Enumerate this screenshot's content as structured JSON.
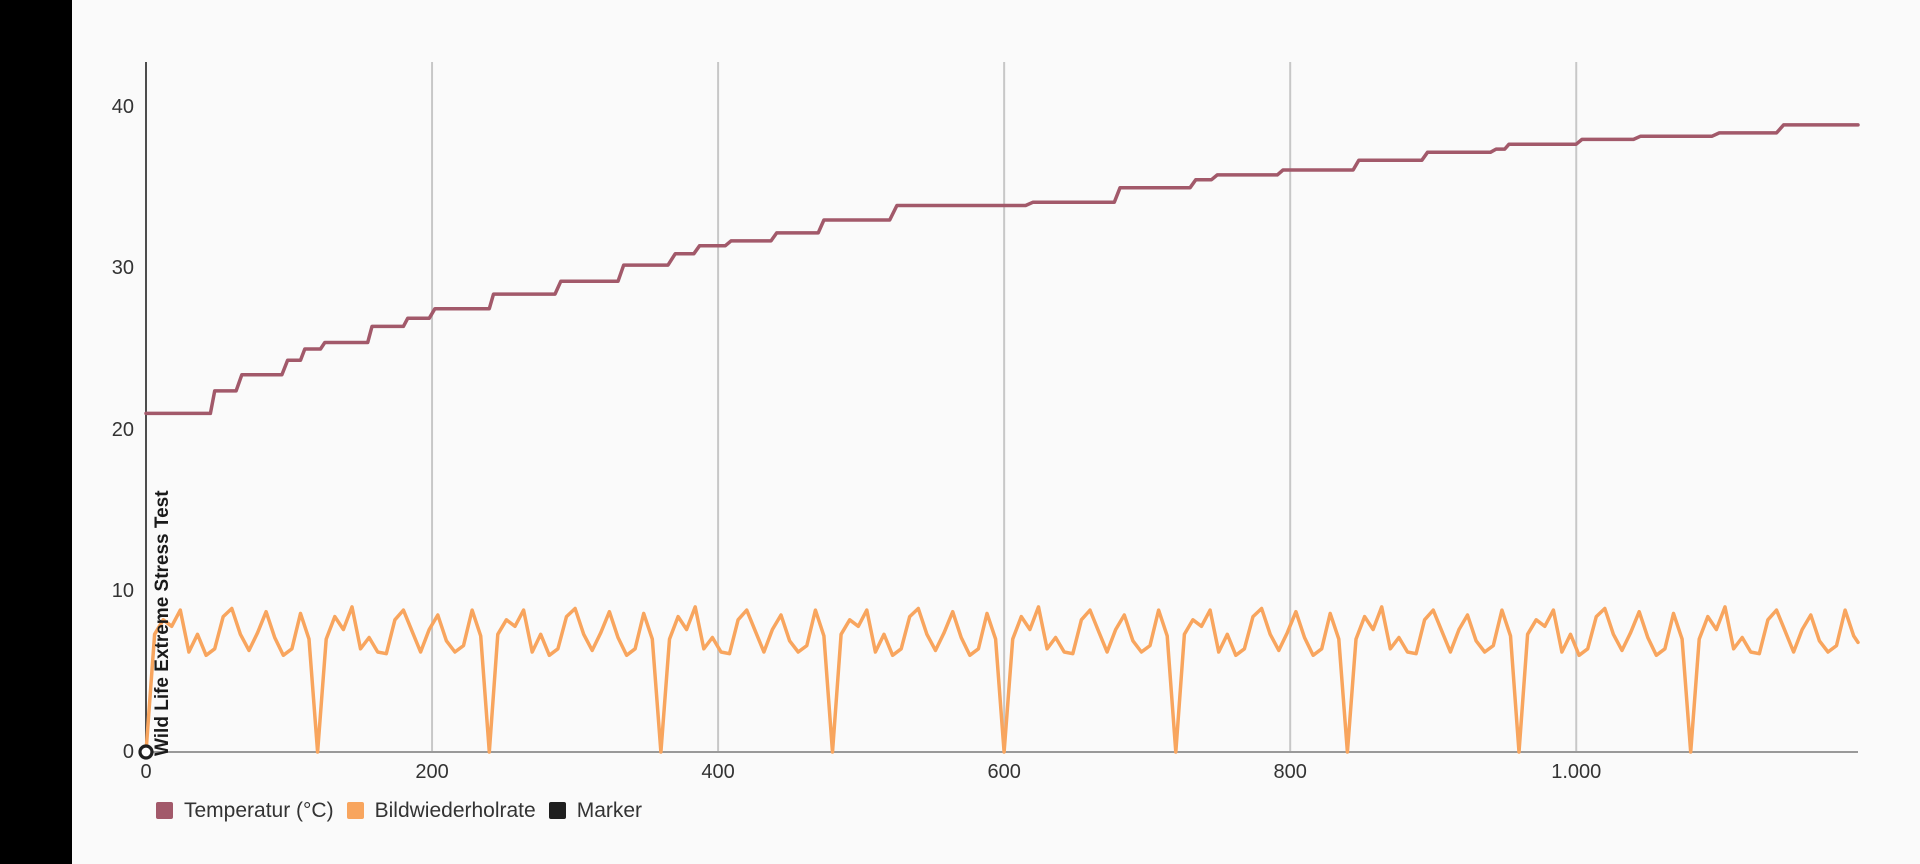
{
  "chart_data": {
    "type": "line",
    "annotation": "Wild Life Extreme Stress Test",
    "legend_position": "bottom-left",
    "grid": "vertical-only",
    "x_axis": {
      "max": 1197,
      "ticks": [
        {
          "value": 0,
          "label": "0"
        },
        {
          "value": 200,
          "label": "200"
        },
        {
          "value": 400,
          "label": "400"
        },
        {
          "value": 600,
          "label": "600"
        },
        {
          "value": 800,
          "label": "800"
        },
        {
          "value": 1000,
          "label": "1.000"
        }
      ]
    },
    "y_axis": {
      "max": 42.8,
      "ticks": [
        {
          "value": 0,
          "label": "0"
        },
        {
          "value": 10,
          "label": "10"
        },
        {
          "value": 20,
          "label": "20"
        },
        {
          "value": 30,
          "label": "30"
        },
        {
          "value": 40,
          "label": "40"
        }
      ]
    },
    "legend": [
      {
        "label": "Temperatur (°C)",
        "color": "#a2596a"
      },
      {
        "label": "Bildwiederholrate",
        "color": "#f8a55e"
      },
      {
        "label": "Marker",
        "color": "#1f1f1f"
      }
    ],
    "series": [
      {
        "name": "Temperatur (°C)",
        "color": "#a2596a",
        "kind": "line",
        "points": [
          [
            0,
            21
          ],
          [
            45,
            21
          ],
          [
            48,
            22.4
          ],
          [
            63,
            22.4
          ],
          [
            67,
            23.4
          ],
          [
            95,
            23.4
          ],
          [
            99,
            24.3
          ],
          [
            108,
            24.3
          ],
          [
            111,
            25.0
          ],
          [
            122,
            25.0
          ],
          [
            125,
            25.4
          ],
          [
            155,
            25.4
          ],
          [
            158,
            26.4
          ],
          [
            180,
            26.4
          ],
          [
            183,
            26.9
          ],
          [
            198,
            26.9
          ],
          [
            202,
            27.5
          ],
          [
            240,
            27.5
          ],
          [
            243,
            28.4
          ],
          [
            286,
            28.4
          ],
          [
            290,
            29.2
          ],
          [
            330,
            29.2
          ],
          [
            334,
            30.2
          ],
          [
            365,
            30.2
          ],
          [
            370,
            30.9
          ],
          [
            383,
            30.9
          ],
          [
            387,
            31.4
          ],
          [
            405,
            31.4
          ],
          [
            409,
            31.7
          ],
          [
            437,
            31.7
          ],
          [
            441,
            32.2
          ],
          [
            470,
            32.2
          ],
          [
            474,
            33.0
          ],
          [
            520,
            33.0
          ],
          [
            525,
            33.9
          ],
          [
            615,
            33.9
          ],
          [
            620,
            34.1
          ],
          [
            677,
            34.1
          ],
          [
            681,
            35.0
          ],
          [
            730,
            35.0
          ],
          [
            734,
            35.5
          ],
          [
            745,
            35.5
          ],
          [
            749,
            35.8
          ],
          [
            791,
            35.8
          ],
          [
            795,
            36.1
          ],
          [
            844,
            36.1
          ],
          [
            848,
            36.7
          ],
          [
            892,
            36.7
          ],
          [
            896,
            37.2
          ],
          [
            940,
            37.2
          ],
          [
            944,
            37.4
          ],
          [
            950,
            37.4
          ],
          [
            953,
            37.7
          ],
          [
            1000,
            37.7
          ],
          [
            1004,
            38.0
          ],
          [
            1040,
            38.0
          ],
          [
            1045,
            38.2
          ],
          [
            1095,
            38.2
          ],
          [
            1100,
            38.4
          ],
          [
            1140,
            38.4
          ],
          [
            1145,
            38.9
          ],
          [
            1197,
            38.9
          ]
        ]
      },
      {
        "name": "Bildwiederholrate",
        "color": "#f8a55e",
        "kind": "line",
        "points": [
          [
            0,
            0
          ],
          [
            6,
            7.3
          ],
          [
            12,
            8.2
          ],
          [
            18,
            7.8
          ],
          [
            24,
            8.8
          ],
          [
            30,
            6.2
          ],
          [
            36,
            7.3
          ],
          [
            42,
            6.0
          ],
          [
            48,
            6.4
          ],
          [
            54,
            8.4
          ],
          [
            60,
            8.9
          ],
          [
            66,
            7.3
          ],
          [
            72,
            6.3
          ],
          [
            78,
            7.4
          ],
          [
            84,
            8.7
          ],
          [
            90,
            7.1
          ],
          [
            96,
            6.0
          ],
          [
            102,
            6.4
          ],
          [
            108,
            8.6
          ],
          [
            114,
            7.0
          ],
          [
            120,
            0
          ],
          [
            126,
            7.0
          ],
          [
            132,
            8.4
          ],
          [
            138,
            7.6
          ],
          [
            144,
            9.0
          ],
          [
            150,
            6.4
          ],
          [
            156,
            7.1
          ],
          [
            162,
            6.2
          ],
          [
            168,
            6.1
          ],
          [
            174,
            8.2
          ],
          [
            180,
            8.8
          ],
          [
            186,
            7.5
          ],
          [
            192,
            6.2
          ],
          [
            198,
            7.6
          ],
          [
            204,
            8.5
          ],
          [
            210,
            6.9
          ],
          [
            216,
            6.2
          ],
          [
            222,
            6.6
          ],
          [
            228,
            8.8
          ],
          [
            234,
            7.2
          ],
          [
            240,
            0
          ],
          [
            246,
            7.3
          ],
          [
            252,
            8.2
          ],
          [
            258,
            7.8
          ],
          [
            264,
            8.8
          ],
          [
            270,
            6.2
          ],
          [
            276,
            7.3
          ],
          [
            282,
            6.0
          ],
          [
            288,
            6.4
          ],
          [
            294,
            8.4
          ],
          [
            300,
            8.9
          ],
          [
            306,
            7.3
          ],
          [
            312,
            6.3
          ],
          [
            318,
            7.4
          ],
          [
            324,
            8.7
          ],
          [
            330,
            7.1
          ],
          [
            336,
            6.0
          ],
          [
            342,
            6.4
          ],
          [
            348,
            8.6
          ],
          [
            354,
            7.0
          ],
          [
            360,
            0
          ],
          [
            366,
            7.0
          ],
          [
            372,
            8.4
          ],
          [
            378,
            7.6
          ],
          [
            384,
            9.0
          ],
          [
            390,
            6.4
          ],
          [
            396,
            7.1
          ],
          [
            402,
            6.2
          ],
          [
            408,
            6.1
          ],
          [
            414,
            8.2
          ],
          [
            420,
            8.8
          ],
          [
            426,
            7.5
          ],
          [
            432,
            6.2
          ],
          [
            438,
            7.6
          ],
          [
            444,
            8.5
          ],
          [
            450,
            6.9
          ],
          [
            456,
            6.2
          ],
          [
            462,
            6.6
          ],
          [
            468,
            8.8
          ],
          [
            474,
            7.2
          ],
          [
            480,
            0
          ],
          [
            486,
            7.3
          ],
          [
            492,
            8.2
          ],
          [
            498,
            7.8
          ],
          [
            504,
            8.8
          ],
          [
            510,
            6.2
          ],
          [
            516,
            7.3
          ],
          [
            522,
            6.0
          ],
          [
            528,
            6.4
          ],
          [
            534,
            8.4
          ],
          [
            540,
            8.9
          ],
          [
            546,
            7.3
          ],
          [
            552,
            6.3
          ],
          [
            558,
            7.4
          ],
          [
            564,
            8.7
          ],
          [
            570,
            7.1
          ],
          [
            576,
            6.0
          ],
          [
            582,
            6.4
          ],
          [
            588,
            8.6
          ],
          [
            594,
            7.0
          ],
          [
            600,
            0
          ],
          [
            606,
            7.0
          ],
          [
            612,
            8.4
          ],
          [
            618,
            7.6
          ],
          [
            624,
            9.0
          ],
          [
            630,
            6.4
          ],
          [
            636,
            7.1
          ],
          [
            642,
            6.2
          ],
          [
            648,
            6.1
          ],
          [
            654,
            8.2
          ],
          [
            660,
            8.8
          ],
          [
            666,
            7.5
          ],
          [
            672,
            6.2
          ],
          [
            678,
            7.6
          ],
          [
            684,
            8.5
          ],
          [
            690,
            6.9
          ],
          [
            696,
            6.2
          ],
          [
            702,
            6.6
          ],
          [
            708,
            8.8
          ],
          [
            714,
            7.2
          ],
          [
            720,
            0
          ],
          [
            726,
            7.3
          ],
          [
            732,
            8.2
          ],
          [
            738,
            7.8
          ],
          [
            744,
            8.8
          ],
          [
            750,
            6.2
          ],
          [
            756,
            7.3
          ],
          [
            762,
            6.0
          ],
          [
            768,
            6.4
          ],
          [
            774,
            8.4
          ],
          [
            780,
            8.9
          ],
          [
            786,
            7.3
          ],
          [
            792,
            6.3
          ],
          [
            798,
            7.4
          ],
          [
            804,
            8.7
          ],
          [
            810,
            7.1
          ],
          [
            816,
            6.0
          ],
          [
            822,
            6.4
          ],
          [
            828,
            8.6
          ],
          [
            834,
            7.0
          ],
          [
            840,
            0
          ],
          [
            846,
            7.0
          ],
          [
            852,
            8.4
          ],
          [
            858,
            7.6
          ],
          [
            864,
            9.0
          ],
          [
            870,
            6.4
          ],
          [
            876,
            7.1
          ],
          [
            882,
            6.2
          ],
          [
            888,
            6.1
          ],
          [
            894,
            8.2
          ],
          [
            900,
            8.8
          ],
          [
            906,
            7.5
          ],
          [
            912,
            6.2
          ],
          [
            918,
            7.6
          ],
          [
            924,
            8.5
          ],
          [
            930,
            6.9
          ],
          [
            936,
            6.2
          ],
          [
            942,
            6.6
          ],
          [
            948,
            8.8
          ],
          [
            954,
            7.2
          ],
          [
            960,
            0
          ],
          [
            966,
            7.3
          ],
          [
            972,
            8.2
          ],
          [
            978,
            7.8
          ],
          [
            984,
            8.8
          ],
          [
            990,
            6.2
          ],
          [
            996,
            7.3
          ],
          [
            1002,
            6.0
          ],
          [
            1008,
            6.4
          ],
          [
            1014,
            8.4
          ],
          [
            1020,
            8.9
          ],
          [
            1026,
            7.3
          ],
          [
            1032,
            6.3
          ],
          [
            1038,
            7.4
          ],
          [
            1044,
            8.7
          ],
          [
            1050,
            7.1
          ],
          [
            1056,
            6.0
          ],
          [
            1062,
            6.4
          ],
          [
            1068,
            8.6
          ],
          [
            1074,
            7.0
          ],
          [
            1080,
            0
          ],
          [
            1086,
            7.0
          ],
          [
            1092,
            8.4
          ],
          [
            1098,
            7.6
          ],
          [
            1104,
            9.0
          ],
          [
            1110,
            6.4
          ],
          [
            1116,
            7.1
          ],
          [
            1122,
            6.2
          ],
          [
            1128,
            6.1
          ],
          [
            1134,
            8.2
          ],
          [
            1140,
            8.8
          ],
          [
            1146,
            7.5
          ],
          [
            1152,
            6.2
          ],
          [
            1158,
            7.6
          ],
          [
            1164,
            8.5
          ],
          [
            1170,
            6.9
          ],
          [
            1176,
            6.2
          ],
          [
            1182,
            6.6
          ],
          [
            1188,
            8.8
          ],
          [
            1194,
            7.2
          ],
          [
            1197,
            6.8
          ]
        ]
      },
      {
        "name": "Marker",
        "color": "#1f1f1f",
        "kind": "scatter",
        "marker": "open-circle",
        "points": [
          [
            0,
            0
          ]
        ]
      }
    ],
    "colors": {
      "background": "#fafafa",
      "sidebar": "#000000",
      "grid": "#c7c7c7",
      "y_axis_line": "#4d4d4d",
      "x_axis_line": "#999999",
      "text": "#333333"
    }
  }
}
